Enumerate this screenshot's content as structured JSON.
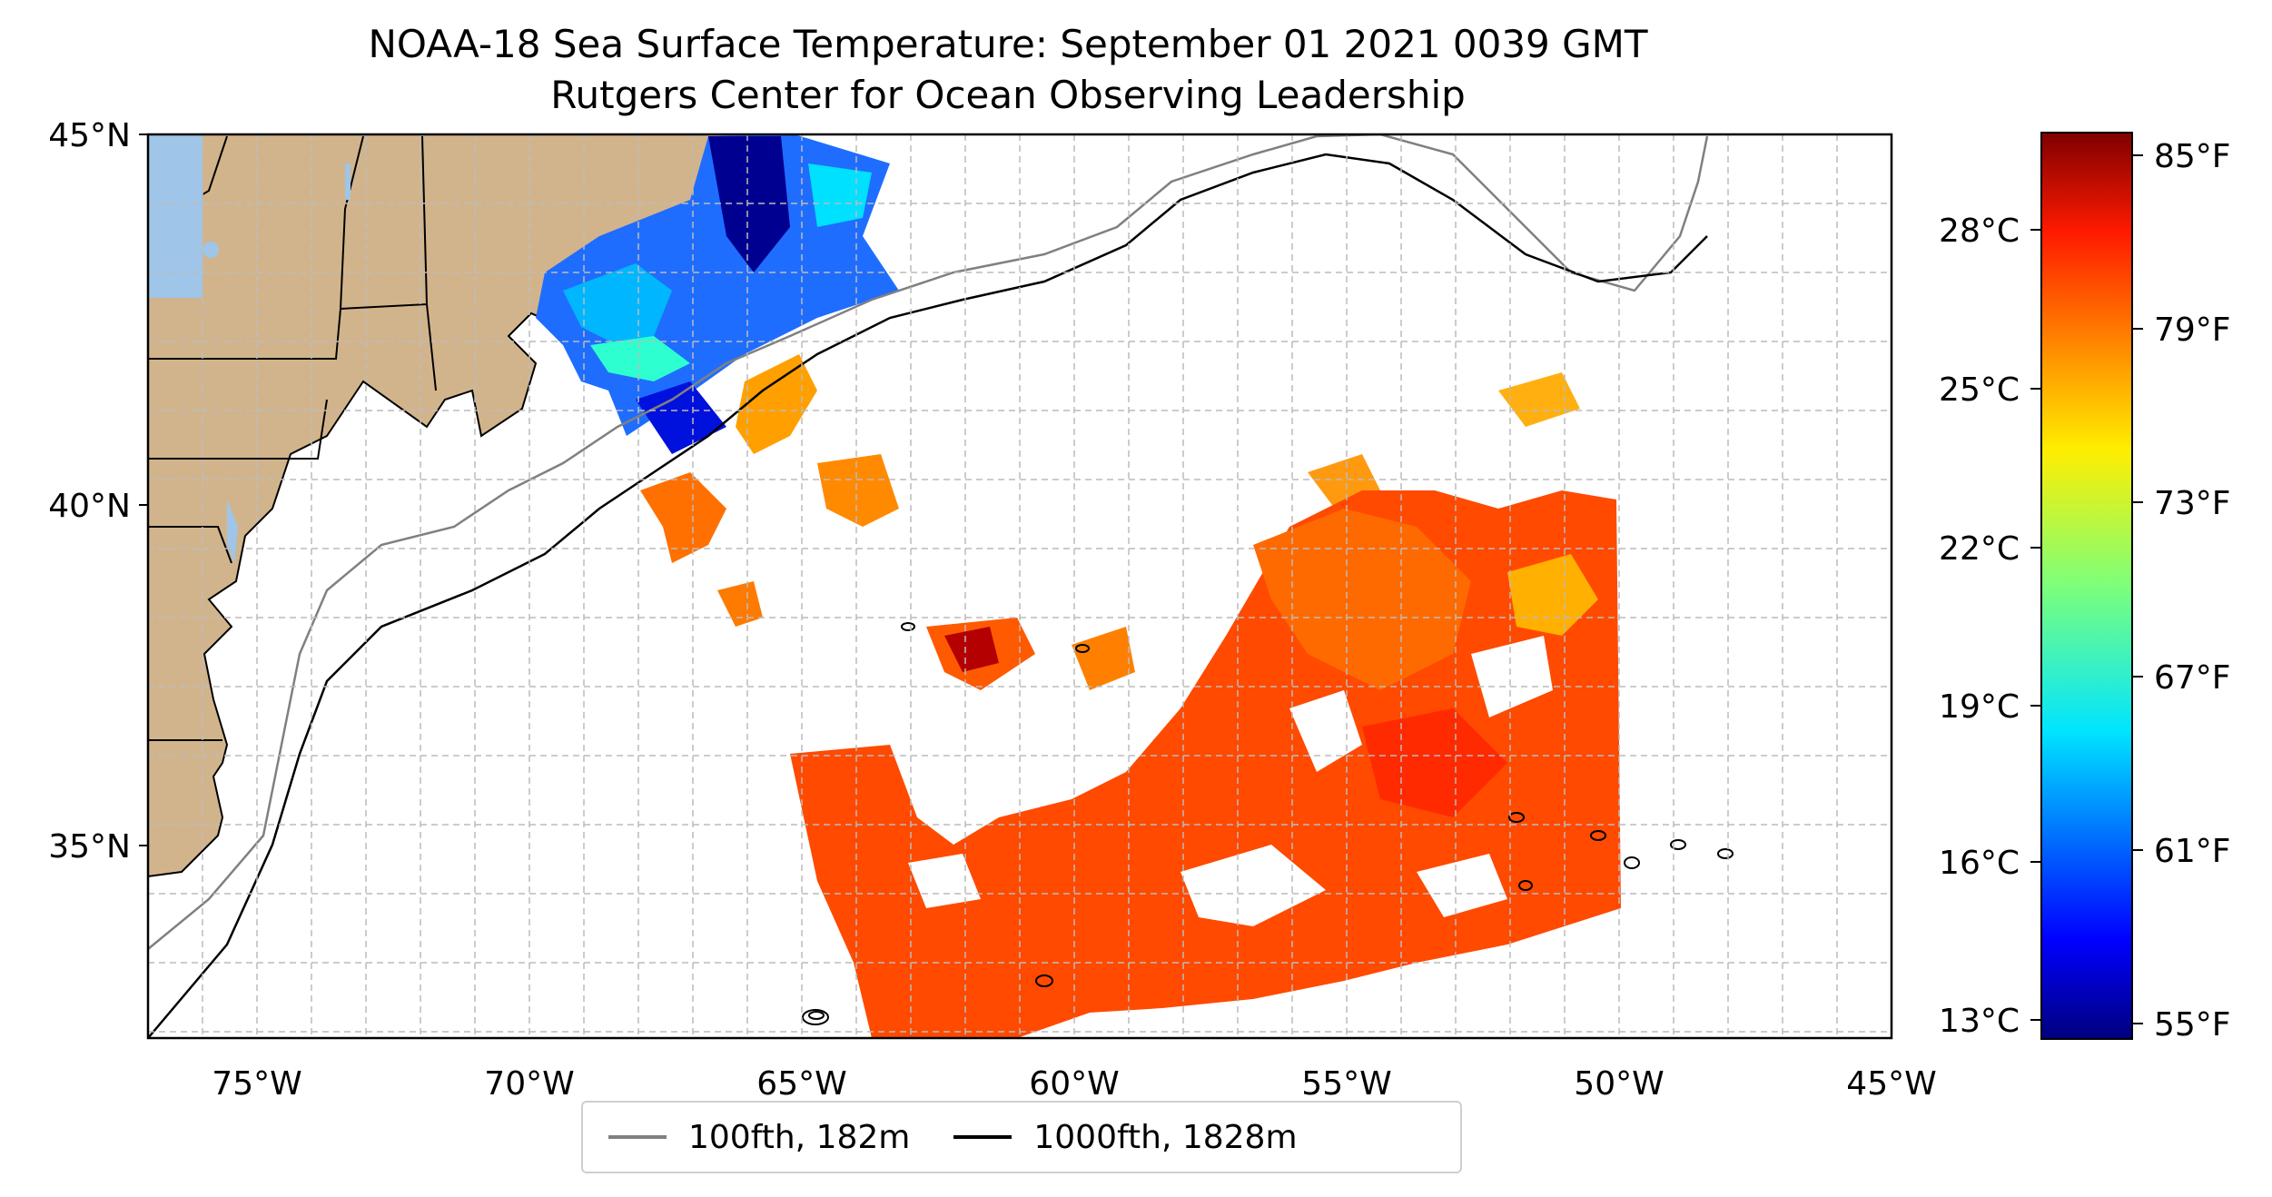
{
  "title": {
    "line1": "NOAA-18 Sea Surface Temperature: September 01 2021 0039 GMT",
    "line2": "Rutgers Center for Ocean Observing Leadership"
  },
  "map": {
    "lon_range": [
      -77,
      -45
    ],
    "lat_range": [
      32.5,
      45
    ],
    "lat_ticks": [
      {
        "value": 45,
        "label": "45°N"
      },
      {
        "value": 40,
        "label": "40°N"
      },
      {
        "value": 35,
        "label": "35°N"
      }
    ],
    "lon_ticks": [
      {
        "value": -75,
        "label": "75°W"
      },
      {
        "value": -70,
        "label": "70°W"
      },
      {
        "value": -65,
        "label": "65°W"
      },
      {
        "value": -60,
        "label": "60°W"
      },
      {
        "value": -55,
        "label": "55°W"
      },
      {
        "value": -50,
        "label": "50°W"
      },
      {
        "value": -45,
        "label": "45°W"
      }
    ],
    "gridlines": "dashed",
    "colors": {
      "land": "#D2B48C",
      "lakes": "#9fc5e8",
      "contour_100fth": "#808080",
      "contour_1000fth": "#000000"
    }
  },
  "colorbar": {
    "colormap": "jet",
    "range_f": [
      54.5,
      86
    ],
    "fahrenheit_ticks": [
      "85°F",
      "79°F",
      "73°F",
      "67°F",
      "61°F",
      "55°F"
    ],
    "celsius_ticks": [
      "28°C",
      "25°C",
      "22°C",
      "19°C",
      "16°C",
      "13°C"
    ]
  },
  "legend": {
    "items": [
      {
        "label": "100fth, 182m",
        "color": "#808080"
      },
      {
        "label": "1000fth, 1828m",
        "color": "#000000"
      }
    ]
  }
}
